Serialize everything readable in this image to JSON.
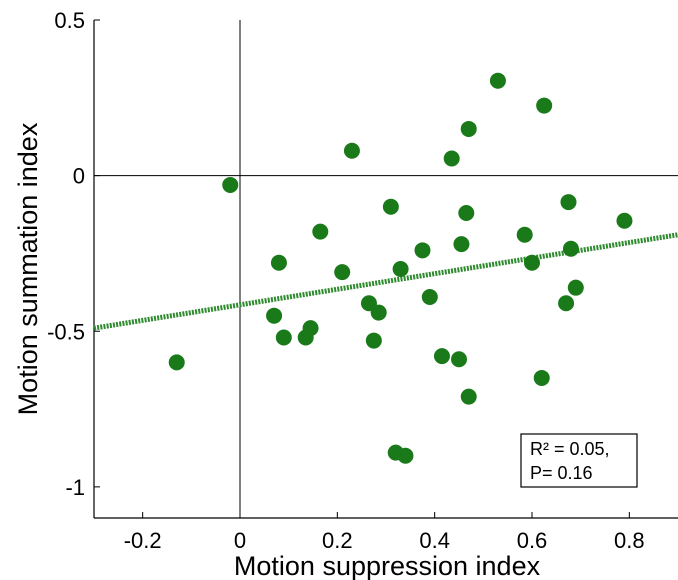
{
  "chart_data": {
    "type": "scatter",
    "title": "",
    "xlabel": "Motion suppression index",
    "ylabel": "Motion summation index",
    "xlim": [
      -0.3,
      0.9
    ],
    "ylim": [
      -1.1,
      0.5
    ],
    "xticks": [
      -0.2,
      0,
      0.2,
      0.4,
      0.6,
      0.8
    ],
    "xtick_labels": [
      "-0.2",
      "0",
      "0.2",
      "0.4",
      "0.6",
      "0.8"
    ],
    "yticks": [
      -1,
      -0.5,
      0,
      0.5
    ],
    "ytick_labels": [
      "-1",
      "-0.5",
      "0",
      "0.5"
    ],
    "zero_lines": true,
    "grid": false,
    "marker_color": "#1a7a1a",
    "points": [
      {
        "x": -0.13,
        "y": -0.6
      },
      {
        "x": -0.02,
        "y": -0.03
      },
      {
        "x": 0.07,
        "y": -0.45
      },
      {
        "x": 0.08,
        "y": -0.28
      },
      {
        "x": 0.09,
        "y": -0.52
      },
      {
        "x": 0.135,
        "y": -0.52
      },
      {
        "x": 0.145,
        "y": -0.49
      },
      {
        "x": 0.165,
        "y": -0.18
      },
      {
        "x": 0.21,
        "y": -0.31
      },
      {
        "x": 0.23,
        "y": 0.08
      },
      {
        "x": 0.265,
        "y": -0.41
      },
      {
        "x": 0.275,
        "y": -0.53
      },
      {
        "x": 0.285,
        "y": -0.44
      },
      {
        "x": 0.31,
        "y": -0.1
      },
      {
        "x": 0.32,
        "y": -0.89
      },
      {
        "x": 0.33,
        "y": -0.3
      },
      {
        "x": 0.34,
        "y": -0.9
      },
      {
        "x": 0.375,
        "y": -0.24
      },
      {
        "x": 0.39,
        "y": -0.39
      },
      {
        "x": 0.415,
        "y": -0.58
      },
      {
        "x": 0.435,
        "y": 0.055
      },
      {
        "x": 0.45,
        "y": -0.59
      },
      {
        "x": 0.455,
        "y": -0.22
      },
      {
        "x": 0.465,
        "y": -0.12
      },
      {
        "x": 0.47,
        "y": 0.15
      },
      {
        "x": 0.47,
        "y": -0.71
      },
      {
        "x": 0.53,
        "y": 0.305
      },
      {
        "x": 0.585,
        "y": -0.19
      },
      {
        "x": 0.6,
        "y": -0.28
      },
      {
        "x": 0.62,
        "y": -0.65
      },
      {
        "x": 0.625,
        "y": 0.225
      },
      {
        "x": 0.67,
        "y": -0.41
      },
      {
        "x": 0.675,
        "y": -0.085
      },
      {
        "x": 0.68,
        "y": -0.235
      },
      {
        "x": 0.69,
        "y": -0.36
      },
      {
        "x": 0.79,
        "y": -0.145
      }
    ],
    "fit_line": {
      "x": [
        -0.3,
        0.9
      ],
      "y": [
        -0.49,
        -0.19
      ],
      "color": "#2e8b2e",
      "style": "dotted"
    },
    "annotation": {
      "line1": "R² = 0.05,",
      "line2": "P= 0.16",
      "placement": "bottom-right"
    }
  }
}
